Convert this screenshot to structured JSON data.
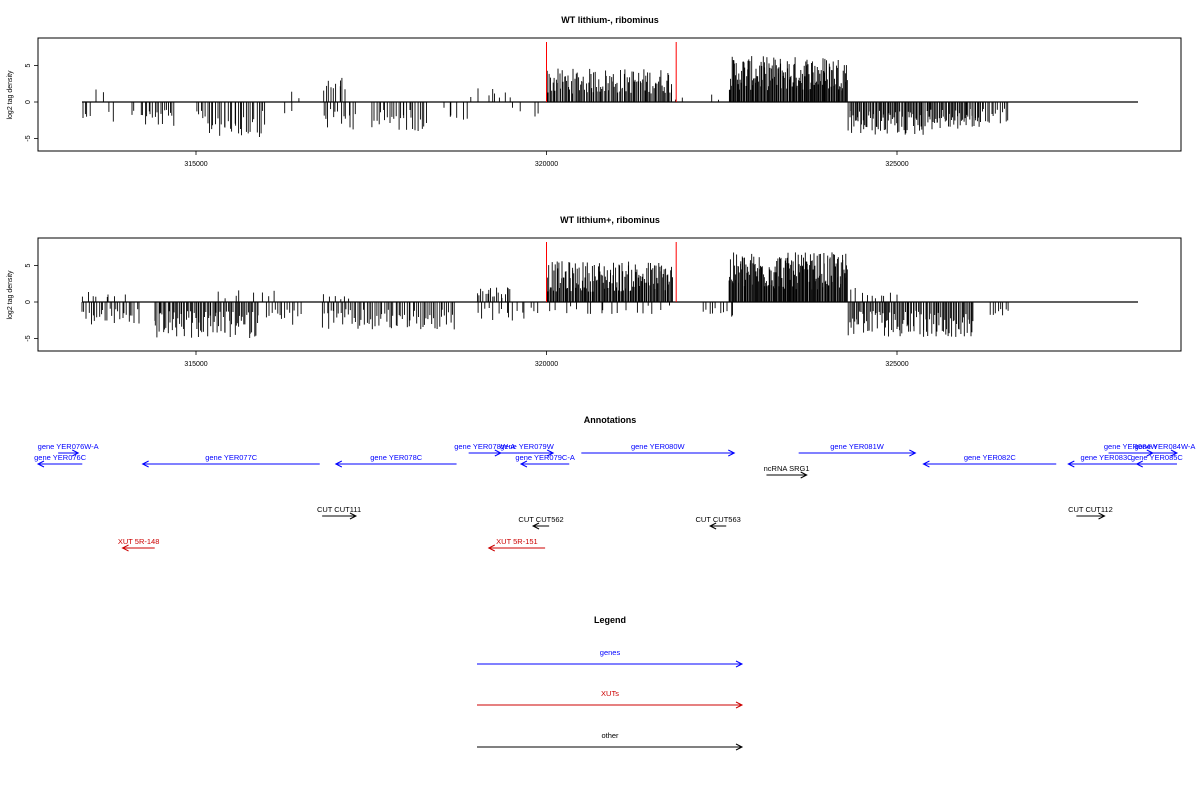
{
  "chart_data": [
    {
      "type": "bar",
      "title": "WT lithium-, ribominus",
      "xlabel": "",
      "ylabel": "log2 tag density",
      "xlim": [
        313200,
        326600
      ],
      "ylim": [
        -6.5,
        7.5
      ],
      "x_ticks": [
        315000,
        320000,
        325000
      ],
      "y_ticks": [
        -5,
        0,
        5
      ],
      "grid": false,
      "marker_lines": [
        320000,
        321850
      ],
      "marker_color": "#ff0000",
      "series": [
        {
          "color": "#000000",
          "segments": [
            {
              "x0": 313300,
              "x1": 313500,
              "n": 6,
              "sign": -1,
              "amp": 2.2
            },
            {
              "x0": 313500,
              "x1": 313700,
              "n": 2,
              "sign": 1,
              "amp": 3.4
            },
            {
              "x0": 313700,
              "x1": 313900,
              "n": 2,
              "sign": -1,
              "amp": 3.2
            },
            {
              "x0": 314000,
              "x1": 314200,
              "n": 2,
              "sign": -1,
              "amp": 2.0
            },
            {
              "x0": 314200,
              "x1": 314700,
              "n": 18,
              "sign": -1,
              "amp": 3.4
            },
            {
              "x0": 315000,
              "x1": 316000,
              "n": 34,
              "sign": -1,
              "amp": 4.8
            },
            {
              "x0": 316200,
              "x1": 316400,
              "n": 2,
              "sign": -1,
              "amp": 2.0
            },
            {
              "x0": 316300,
              "x1": 316500,
              "n": 2,
              "sign": 1,
              "amp": 1.5
            },
            {
              "x0": 316800,
              "x1": 317100,
              "n": 8,
              "sign": 1,
              "amp": 3.8
            },
            {
              "x0": 316800,
              "x1": 317300,
              "n": 14,
              "sign": -1,
              "amp": 3.8
            },
            {
              "x0": 317000,
              "x1": 317200,
              "n": 2,
              "sign": 1,
              "amp": 2.2
            },
            {
              "x0": 317500,
              "x1": 318300,
              "n": 26,
              "sign": -1,
              "amp": 4.0
            },
            {
              "x0": 318500,
              "x1": 318900,
              "n": 6,
              "sign": -1,
              "amp": 2.5
            },
            {
              "x0": 318900,
              "x1": 319300,
              "n": 4,
              "sign": 1,
              "amp": 2.0
            },
            {
              "x0": 319200,
              "x1": 319500,
              "n": 4,
              "sign": 1,
              "amp": 1.5
            },
            {
              "x0": 319500,
              "x1": 319700,
              "n": 2,
              "sign": -1,
              "amp": 2.5
            },
            {
              "x0": 319800,
              "x1": 319950,
              "n": 2,
              "sign": -1,
              "amp": 3.2
            },
            {
              "x0": 320000,
              "x1": 321800,
              "n": 110,
              "sign": 1,
              "amp": 4.6
            },
            {
              "x0": 321800,
              "x1": 322000,
              "n": 2,
              "sign": 1,
              "amp": 1.0
            },
            {
              "x0": 322300,
              "x1": 322500,
              "n": 2,
              "sign": 1,
              "amp": 1.2
            },
            {
              "x0": 322600,
              "x1": 324300,
              "n": 150,
              "sign": 1,
              "amp": 6.3
            },
            {
              "x0": 324300,
              "x1": 325400,
              "n": 70,
              "sign": -1,
              "amp": 4.6
            },
            {
              "x0": 325400,
              "x1": 326200,
              "n": 50,
              "sign": -1,
              "amp": 3.8
            },
            {
              "x0": 326200,
              "x1": 326600,
              "n": 14,
              "sign": -1,
              "amp": 3.0
            }
          ]
        }
      ]
    },
    {
      "type": "bar",
      "title": "WT lithium+, ribominus",
      "xlabel": "",
      "ylabel": "log2 tag density",
      "xlim": [
        313200,
        326600
      ],
      "ylim": [
        -6.5,
        7.5
      ],
      "x_ticks": [
        315000,
        320000,
        325000
      ],
      "y_ticks": [
        -5,
        0,
        5
      ],
      "grid": false,
      "marker_lines": [
        320000,
        321850
      ],
      "marker_color": "#ff0000",
      "series": [
        {
          "color": "#000000",
          "segments": [
            {
              "x0": 313300,
              "x1": 314200,
              "n": 30,
              "sign": -1,
              "amp": 3.2
            },
            {
              "x0": 313300,
              "x1": 314000,
              "n": 8,
              "sign": 1,
              "amp": 1.6
            },
            {
              "x0": 314400,
              "x1": 315900,
              "n": 80,
              "sign": -1,
              "amp": 5.0
            },
            {
              "x0": 315200,
              "x1": 316200,
              "n": 8,
              "sign": 1,
              "amp": 1.6
            },
            {
              "x0": 316000,
              "x1": 316500,
              "n": 14,
              "sign": -1,
              "amp": 3.2
            },
            {
              "x0": 316800,
              "x1": 318700,
              "n": 70,
              "sign": -1,
              "amp": 4.0
            },
            {
              "x0": 316800,
              "x1": 317200,
              "n": 6,
              "sign": 1,
              "amp": 1.5
            },
            {
              "x0": 319000,
              "x1": 319500,
              "n": 18,
              "sign": 1,
              "amp": 2.2
            },
            {
              "x0": 319000,
              "x1": 319900,
              "n": 16,
              "sign": -1,
              "amp": 2.8
            },
            {
              "x0": 320000,
              "x1": 321800,
              "n": 140,
              "sign": 1,
              "amp": 5.6
            },
            {
              "x0": 320000,
              "x1": 321800,
              "n": 18,
              "sign": -1,
              "amp": 1.8
            },
            {
              "x0": 322200,
              "x1": 322700,
              "n": 10,
              "sign": -1,
              "amp": 2.5
            },
            {
              "x0": 322600,
              "x1": 324300,
              "n": 160,
              "sign": 1,
              "amp": 6.8
            },
            {
              "x0": 324300,
              "x1": 326100,
              "n": 100,
              "sign": -1,
              "amp": 4.8
            },
            {
              "x0": 324300,
              "x1": 325000,
              "n": 10,
              "sign": 1,
              "amp": 2.0
            },
            {
              "x0": 326300,
              "x1": 326600,
              "n": 8,
              "sign": -1,
              "amp": 2.0
            }
          ]
        }
      ]
    }
  ],
  "annotations": {
    "title": "Annotations",
    "features": [
      {
        "label": "gene YER076W-A",
        "color": "#0000ff",
        "lane": 0,
        "x0": 313450,
        "x1": 313700,
        "strand": "+"
      },
      {
        "label": "gene YER076C",
        "color": "#0000ff",
        "lane": 1,
        "x0": 313200,
        "x1": 313750,
        "strand": "-"
      },
      {
        "label": "gene YER077C",
        "color": "#0000ff",
        "lane": 1,
        "x0": 314500,
        "x1": 316700,
        "strand": "-"
      },
      {
        "label": "gene YER078C",
        "color": "#0000ff",
        "lane": 1,
        "x0": 316900,
        "x1": 318400,
        "strand": "-"
      },
      {
        "label": "gene YER078W-A",
        "color": "#0000ff",
        "lane": 0,
        "x0": 318550,
        "x1": 318950,
        "strand": "+"
      },
      {
        "label": "gene YER079W",
        "color": "#0000ff",
        "lane": 0,
        "x0": 318950,
        "x1": 319600,
        "strand": "+"
      },
      {
        "label": "gene YER079C-A",
        "color": "#0000ff",
        "lane": 1,
        "x0": 319200,
        "x1": 319800,
        "strand": "-"
      },
      {
        "label": "gene YER080W",
        "color": "#0000ff",
        "lane": 0,
        "x0": 319950,
        "x1": 321850,
        "strand": "+"
      },
      {
        "label": "ncRNA SRG1",
        "color": "#000000",
        "lane": 2,
        "x0": 322250,
        "x1": 322750,
        "strand": "+"
      },
      {
        "label": "gene YER081W",
        "color": "#0000ff",
        "lane": 0,
        "x0": 322650,
        "x1": 324100,
        "strand": "+"
      },
      {
        "label": "gene YER082C",
        "color": "#0000ff",
        "lane": 1,
        "x0": 324200,
        "x1": 325850,
        "strand": "-"
      },
      {
        "label": "gene YER083C",
        "color": "#0000ff",
        "lane": 1,
        "x0": 326000,
        "x1": 326950,
        "strand": "-"
      },
      {
        "label": "gene YER084W",
        "color": "#0000ff",
        "lane": 0,
        "x0": 326500,
        "x1": 327050,
        "strand": "+"
      },
      {
        "label": "gene YER084W-A",
        "color": "#0000ff",
        "lane": 0,
        "x0": 327050,
        "x1": 327350,
        "strand": "+"
      },
      {
        "label": "gene YER085C",
        "color": "#0000ff",
        "lane": 1,
        "x0": 326850,
        "x1": 327350,
        "strand": "-"
      },
      {
        "label": "CUT CUT111",
        "color": "#000000",
        "lane": 3,
        "x0": 316730,
        "x1": 317150,
        "strand": "+"
      },
      {
        "label": "CUT CUT562",
        "color": "#000000",
        "lane": 4,
        "x0": 319350,
        "x1": 319550,
        "strand": "-"
      },
      {
        "label": "CUT CUT563",
        "color": "#000000",
        "lane": 4,
        "x0": 321550,
        "x1": 321750,
        "strand": "-"
      },
      {
        "label": "CUT CUT112",
        "color": "#000000",
        "lane": 3,
        "x0": 326100,
        "x1": 326450,
        "strand": "+"
      },
      {
        "label": "XUT 5R-148",
        "color": "#cc0000",
        "lane": 5,
        "x0": 314250,
        "x1": 314650,
        "strand": "-"
      },
      {
        "label": "XUT 5R-151",
        "color": "#cc0000",
        "lane": 5,
        "x0": 318800,
        "x1": 319500,
        "strand": "-"
      }
    ]
  },
  "legend": {
    "title": "Legend",
    "items": [
      {
        "label": "genes",
        "color": "#0000ff"
      },
      {
        "label": "XUTs",
        "color": "#cc0000"
      },
      {
        "label": "other",
        "color": "#000000"
      }
    ]
  }
}
